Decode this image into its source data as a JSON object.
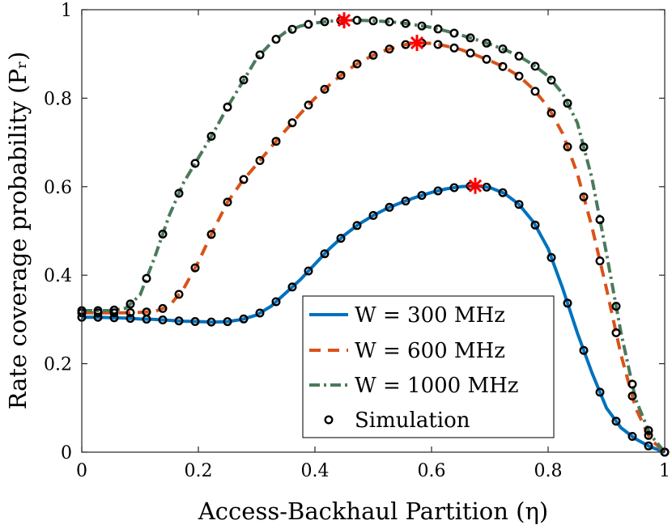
{
  "chart_data": {
    "type": "line",
    "title": "",
    "xlabel": "Access-Backhaul Partition (η)",
    "ylabel": "Rate coverage probability (Pᵣ)",
    "xlim": [
      0,
      1
    ],
    "ylim": [
      0,
      1
    ],
    "xticks": [
      "0",
      "0.2",
      "0.4",
      "0.6",
      "0.8",
      "1"
    ],
    "yticks": [
      "0",
      "0.2",
      "0.4",
      "0.6",
      "0.8",
      "1"
    ],
    "grid": false,
    "legend_position": "bottom-center",
    "series": [
      {
        "name": "W = 300 MHz",
        "color": "#0072BD",
        "style": "solid",
        "x": [
          0,
          0.025,
          0.05,
          0.075,
          0.1,
          0.125,
          0.15,
          0.175,
          0.2,
          0.225,
          0.25,
          0.275,
          0.3,
          0.325,
          0.35,
          0.375,
          0.4,
          0.425,
          0.45,
          0.475,
          0.5,
          0.525,
          0.55,
          0.575,
          0.6,
          0.625,
          0.65,
          0.675,
          0.7,
          0.725,
          0.75,
          0.775,
          0.8,
          0.825,
          0.85,
          0.875,
          0.9,
          0.925,
          0.95,
          0.975,
          1
        ],
        "values": [
          0.305,
          0.305,
          0.304,
          0.303,
          0.301,
          0.3,
          0.298,
          0.296,
          0.295,
          0.294,
          0.295,
          0.3,
          0.31,
          0.33,
          0.36,
          0.39,
          0.425,
          0.46,
          0.49,
          0.515,
          0.535,
          0.552,
          0.565,
          0.577,
          0.587,
          0.595,
          0.6,
          0.602,
          0.598,
          0.585,
          0.56,
          0.52,
          0.46,
          0.37,
          0.27,
          0.18,
          0.1,
          0.055,
          0.03,
          0.012,
          0
        ]
      },
      {
        "name": "W = 600 MHz",
        "color": "#D95319",
        "style": "dashed",
        "x": [
          0,
          0.025,
          0.05,
          0.075,
          0.1,
          0.125,
          0.15,
          0.175,
          0.2,
          0.225,
          0.25,
          0.275,
          0.3,
          0.325,
          0.35,
          0.375,
          0.4,
          0.425,
          0.45,
          0.475,
          0.5,
          0.525,
          0.55,
          0.575,
          0.6,
          0.625,
          0.65,
          0.675,
          0.7,
          0.725,
          0.75,
          0.775,
          0.8,
          0.825,
          0.85,
          0.875,
          0.9,
          0.925,
          0.95,
          0.975,
          1
        ],
        "values": [
          0.315,
          0.315,
          0.315,
          0.315,
          0.316,
          0.318,
          0.33,
          0.37,
          0.43,
          0.5,
          0.565,
          0.612,
          0.65,
          0.69,
          0.728,
          0.765,
          0.8,
          0.83,
          0.858,
          0.88,
          0.897,
          0.91,
          0.92,
          0.925,
          0.924,
          0.918,
          0.91,
          0.898,
          0.885,
          0.87,
          0.85,
          0.82,
          0.78,
          0.72,
          0.63,
          0.51,
          0.37,
          0.22,
          0.1,
          0.03,
          0
        ]
      },
      {
        "name": "W = 1000 MHz",
        "color": "#4A7A5C",
        "style": "dashdot",
        "x": [
          0,
          0.025,
          0.05,
          0.075,
          0.1,
          0.125,
          0.15,
          0.175,
          0.2,
          0.225,
          0.25,
          0.275,
          0.3,
          0.325,
          0.35,
          0.375,
          0.4,
          0.425,
          0.45,
          0.475,
          0.5,
          0.525,
          0.55,
          0.575,
          0.6,
          0.625,
          0.65,
          0.675,
          0.7,
          0.725,
          0.75,
          0.775,
          0.8,
          0.825,
          0.85,
          0.875,
          0.9,
          0.925,
          0.95,
          0.975,
          1
        ],
        "values": [
          0.32,
          0.32,
          0.32,
          0.325,
          0.355,
          0.44,
          0.535,
          0.61,
          0.665,
          0.72,
          0.78,
          0.835,
          0.89,
          0.925,
          0.95,
          0.963,
          0.97,
          0.974,
          0.976,
          0.976,
          0.975,
          0.973,
          0.97,
          0.965,
          0.96,
          0.952,
          0.943,
          0.933,
          0.922,
          0.91,
          0.895,
          0.875,
          0.85,
          0.81,
          0.745,
          0.62,
          0.45,
          0.27,
          0.12,
          0.04,
          0
        ]
      }
    ],
    "optimum_markers": [
      {
        "series": "W = 300 MHz",
        "x": 0.675,
        "y": 0.602
      },
      {
        "series": "W = 600 MHz",
        "x": 0.575,
        "y": 0.925
      },
      {
        "series": "W = 1000 MHz",
        "x": 0.45,
        "y": 0.976
      }
    ],
    "simulation": {
      "name": "Simulation",
      "x": [
        0,
        0.0278,
        0.0556,
        0.0833,
        0.1111,
        0.1389,
        0.1667,
        0.1944,
        0.2222,
        0.25,
        0.2778,
        0.3056,
        0.3333,
        0.3611,
        0.3889,
        0.4167,
        0.4444,
        0.4722,
        0.5,
        0.5278,
        0.5556,
        0.5833,
        0.6111,
        0.6389,
        0.6667,
        0.6944,
        0.7222,
        0.75,
        0.7778,
        0.8056,
        0.8333,
        0.8611,
        0.8889,
        0.9167,
        0.9444,
        0.9722,
        1
      ]
    },
    "legend": [
      "W = 300 MHz",
      "W = 600 MHz",
      "W = 1000 MHz",
      "Simulation"
    ]
  }
}
